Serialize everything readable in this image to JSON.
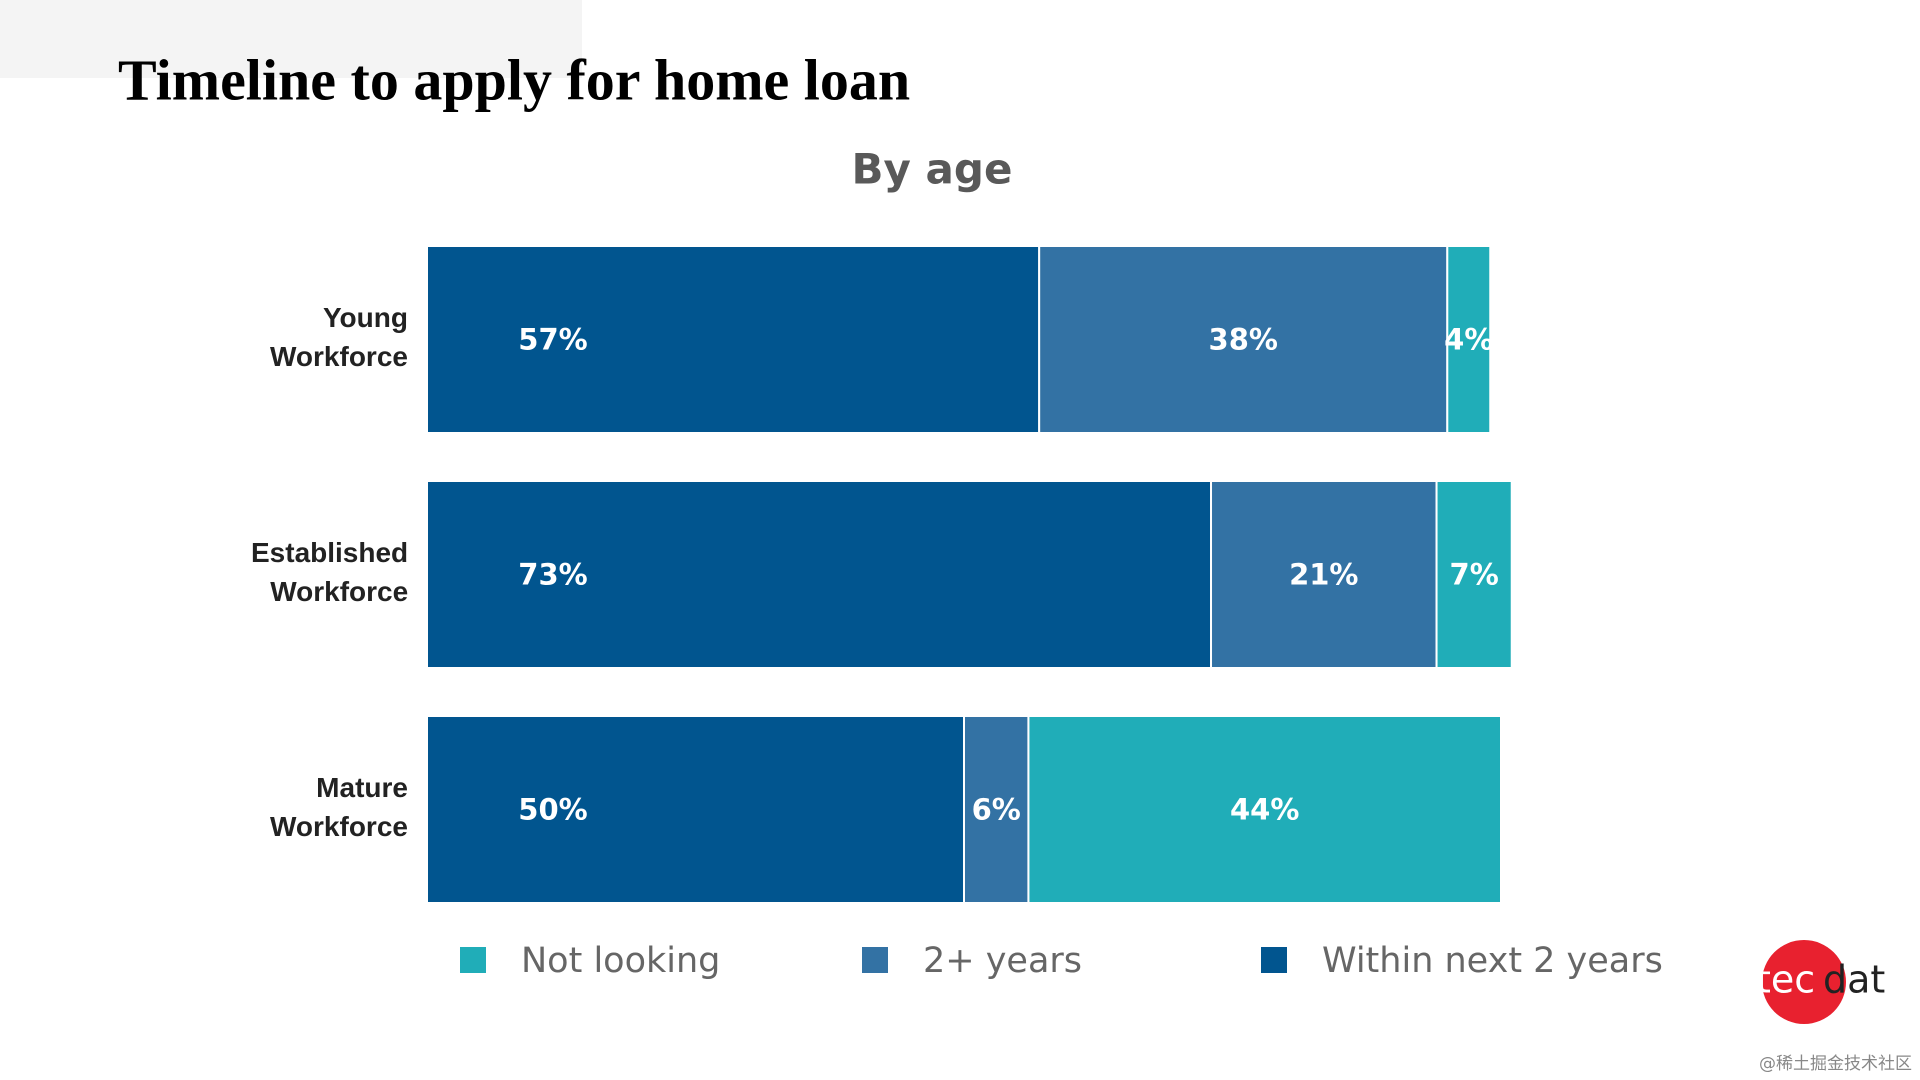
{
  "chart_data": {
    "type": "stacked-bar-horizontal",
    "title": "Timeline to apply for home loan",
    "subtitle": "By age",
    "categories": [
      "Young Workforce",
      "Established Workforce",
      "Mature Workforce"
    ],
    "series": [
      {
        "name": "Not looking",
        "color": "#20adb8",
        "values": [
          4,
          7,
          44
        ],
        "value_labels": [
          "4%",
          "7%",
          "44%"
        ]
      },
      {
        "name": "2+ years",
        "color": "#3372a4",
        "values": [
          38,
          21,
          6
        ],
        "value_labels": [
          "38%",
          "21%",
          "6%"
        ]
      },
      {
        "name": "Within next 2 years",
        "color": "#01558f",
        "values": [
          57,
          73,
          50
        ],
        "value_labels": [
          "57%",
          "73%",
          "50%"
        ]
      }
    ],
    "legend": "bottom"
  },
  "logo": {
    "left": "tec",
    "right": "dat"
  },
  "credit": "@稀土掘金技术社区"
}
